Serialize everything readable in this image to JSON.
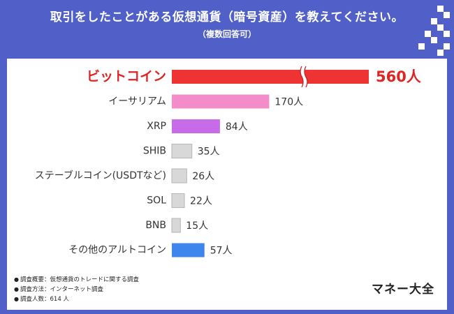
{
  "header": {
    "title": "取引をしたことがある仮想通貨（暗号資産）を教えてください。",
    "subtitle": "（複数回答可）"
  },
  "chart_data": {
    "type": "bar",
    "orientation": "horizontal",
    "categories": [
      "ビットコイン",
      "イーサリアム",
      "XRP",
      "SHIB",
      "ステーブルコイン(USDTなど)",
      "SOL",
      "BNB",
      "その他のアルトコイン"
    ],
    "values": [
      560,
      170,
      84,
      35,
      26,
      22,
      15,
      57
    ],
    "value_labels": [
      "560人",
      "170人",
      "84人",
      "35人",
      "26人",
      "22人",
      "15人",
      "57人"
    ],
    "bar_colors": [
      "#ee3333",
      "#f38cc8",
      "#c76be8",
      "#d8d8d8",
      "#d8d8d8",
      "#d8d8d8",
      "#d8d8d8",
      "#3e86ee"
    ],
    "highlight_label_color": "#e02424",
    "axis_break_on": "ビットコイン",
    "title": "",
    "xlabel": "",
    "ylabel": ""
  },
  "footnotes": [
    "調査概要：仮想通貨のトレードに関する調査",
    "調査方法：インターネット調査",
    "調査人数：614 人"
  ],
  "brand": "マネー大全",
  "icons": {
    "footnote_bullet": "bullet-icon",
    "corner_decoration": "pixel-squares-decoration"
  },
  "colors": {
    "background": "#5060c8",
    "card": "#ffffff"
  }
}
